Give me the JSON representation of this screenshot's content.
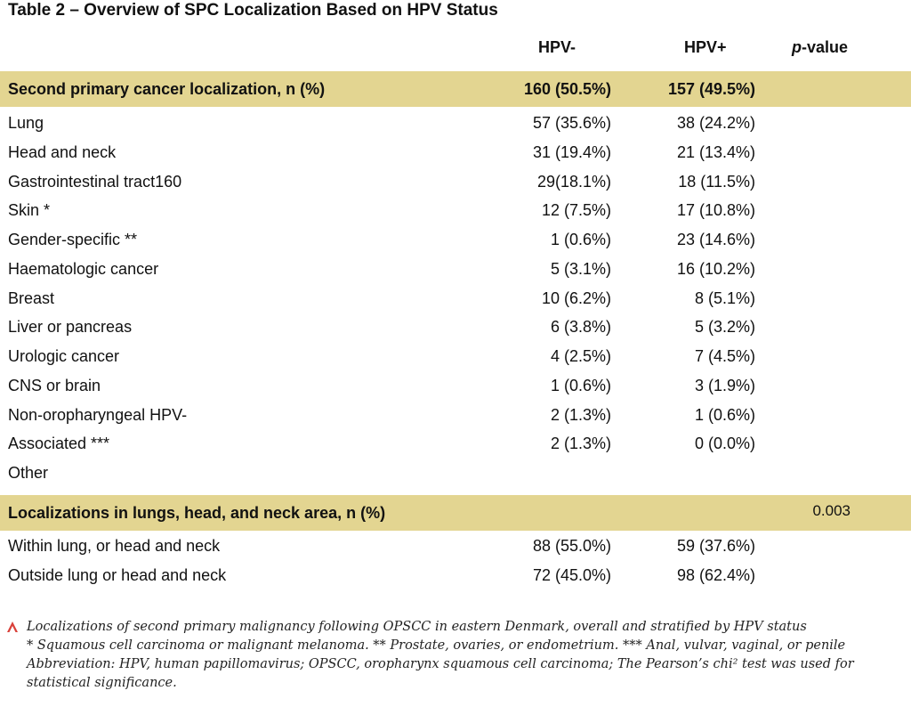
{
  "title": "Table 2 – Overview of SPC Localization Based on HPV Status",
  "headers": {
    "hpv_neg": "HPV-",
    "hpv_pos": "HPV+",
    "p_italic": "p",
    "p_rest": "-value"
  },
  "section1": {
    "label": "Second primary cancer localization, n (%)",
    "hpv_neg": "160 (50.5%)",
    "hpv_pos": "157 (49.5%)",
    "rows": [
      {
        "label": "Lung",
        "hpv_neg": "57 (35.6%)",
        "hpv_pos": "38 (24.2%)"
      },
      {
        "label": "Head and neck",
        "hpv_neg": "31 (19.4%)",
        "hpv_pos": "21 (13.4%)"
      },
      {
        "label": "Gastrointestinal tract160",
        "hpv_neg": "29(18.1%)",
        "hpv_pos": "18 (11.5%)"
      },
      {
        "label": "Skin *",
        "hpv_neg": "12 (7.5%)",
        "hpv_pos": "17 (10.8%)"
      },
      {
        "label": "Gender-specific **",
        "hpv_neg": "1 (0.6%)",
        "hpv_pos": "23 (14.6%)"
      },
      {
        "label": "Haematologic cancer",
        "hpv_neg": "5 (3.1%)",
        "hpv_pos": "16 (10.2%)"
      },
      {
        "label": "Breast",
        "hpv_neg": "10 (6.2%)",
        "hpv_pos": "8 (5.1%)"
      },
      {
        "label": "Liver or pancreas",
        "hpv_neg": "6 (3.8%)",
        "hpv_pos": "5 (3.2%)"
      },
      {
        "label": "Urologic cancer",
        "hpv_neg": "4 (2.5%)",
        "hpv_pos": "7 (4.5%)"
      },
      {
        "label": "CNS or brain",
        "hpv_neg": "1 (0.6%)",
        "hpv_pos": "3 (1.9%)"
      },
      {
        "label": "Non-oropharyngeal HPV-",
        "hpv_neg": "2 (1.3%)",
        "hpv_pos": "1 (0.6%)"
      },
      {
        "label": "Associated ***",
        "hpv_neg": "2 (1.3%)",
        "hpv_pos": "0 (0.0%)"
      },
      {
        "label": "Other",
        "hpv_neg": "",
        "hpv_pos": ""
      }
    ]
  },
  "section2": {
    "label": "Localizations in lungs, head, and neck area, n (%)",
    "p_value": "0.003",
    "rows": [
      {
        "label": "Within lung, or head and neck",
        "hpv_neg": "88 (55.0%)",
        "hpv_pos": "59 (37.6%)"
      },
      {
        "label": "Outside lung or head and neck",
        "hpv_neg": "72 (45.0%)",
        "hpv_pos": "98 (62.4%)"
      }
    ]
  },
  "footnotes": [
    "Localizations of second primary malignancy following OPSCC in eastern Denmark, overall and stratified by HPV status",
    "* Squamous cell carcinoma or malignant melanoma. ** Prostate, ovaries, or endometrium. *** Anal, vulvar, vaginal, or penile",
    "Abbreviation: HPV, human papillomavirus; OPSCC, oropharynx squamous cell carcinoma; The Pearson’s chi² test was used for",
    "statistical significance."
  ],
  "accent_color": "#e3d591",
  "marker_color": "#d9403a"
}
